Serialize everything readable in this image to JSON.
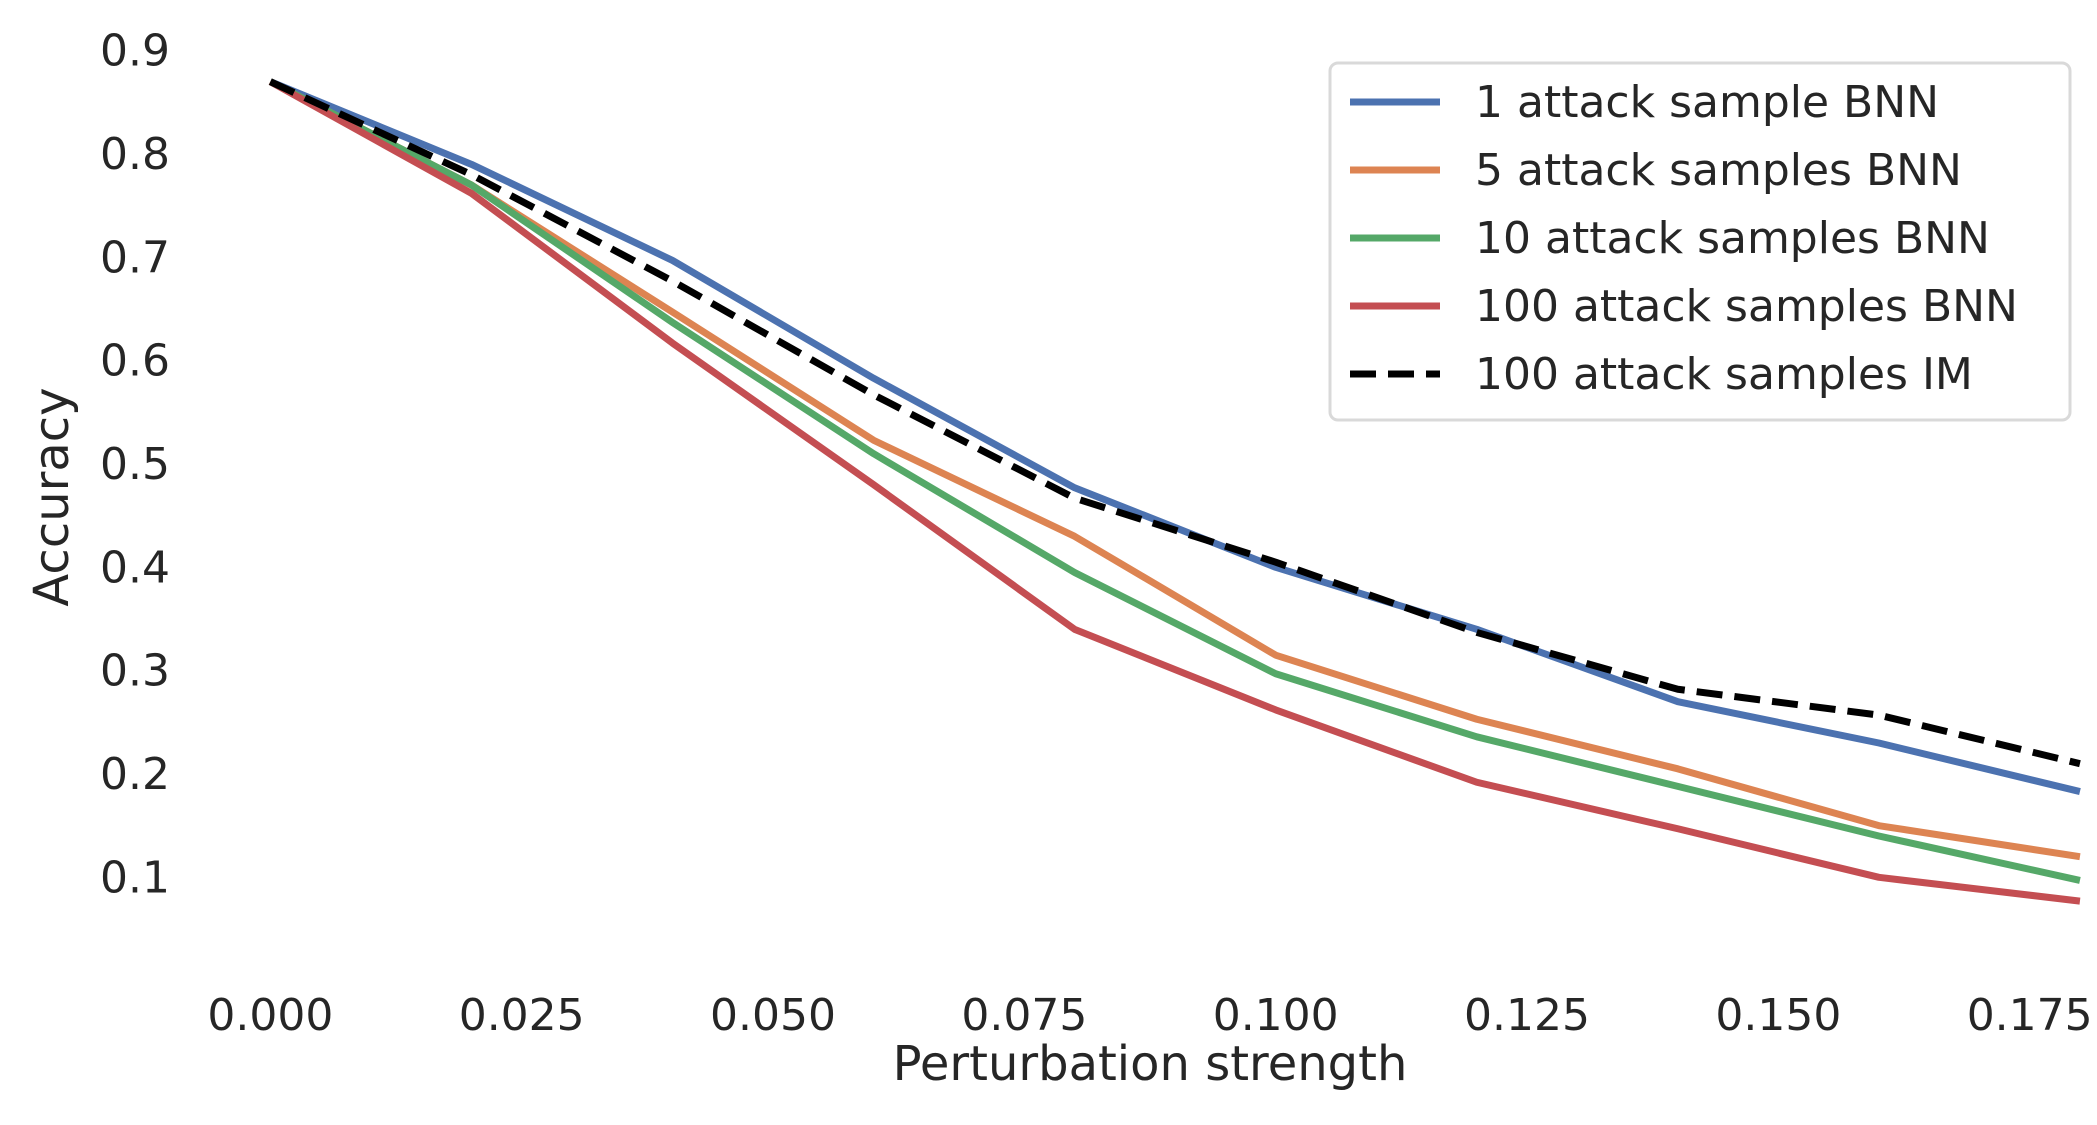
{
  "chart_data": {
    "type": "line",
    "title": "",
    "xlabel": "Perturbation strength",
    "ylabel": "Accuracy",
    "xlim": [
      -0.007,
      0.181
    ],
    "ylim": [
      0.02,
      0.92
    ],
    "xticks": [
      0.0,
      0.025,
      0.05,
      0.075,
      0.1,
      0.125,
      0.15,
      0.175
    ],
    "xtick_labels": [
      "0.000",
      "0.025",
      "0.050",
      "0.075",
      "0.100",
      "0.125",
      "0.150",
      "0.175"
    ],
    "yticks": [
      0.1,
      0.2,
      0.3,
      0.4,
      0.5,
      0.6,
      0.7,
      0.8,
      0.9
    ],
    "ytick_labels": [
      "0.1",
      "0.2",
      "0.3",
      "0.4",
      "0.5",
      "0.6",
      "0.7",
      "0.8",
      "0.9"
    ],
    "grid": false,
    "legend_position": "top-right",
    "x": [
      0.0,
      0.02,
      0.04,
      0.06,
      0.08,
      0.1,
      0.12,
      0.14,
      0.16,
      0.18
    ],
    "series": [
      {
        "name": "1 attack sample BNN",
        "color": "#4c72b0",
        "dash": "solid",
        "values": [
          0.87,
          0.79,
          0.697,
          0.583,
          0.477,
          0.4,
          0.34,
          0.27,
          0.23,
          0.183
        ]
      },
      {
        "name": "5 attack samples BNN",
        "color": "#dd8452",
        "dash": "solid",
        "values": [
          0.87,
          0.77,
          0.647,
          0.523,
          0.43,
          0.315,
          0.253,
          0.205,
          0.15,
          0.12
        ]
      },
      {
        "name": "10 attack samples BNN",
        "color": "#55a868",
        "dash": "solid",
        "values": [
          0.87,
          0.77,
          0.637,
          0.51,
          0.395,
          0.297,
          0.236,
          0.188,
          0.14,
          0.097
        ]
      },
      {
        "name": "100 attack samples BNN",
        "color": "#c44e52",
        "dash": "solid",
        "values": [
          0.87,
          0.762,
          0.617,
          0.48,
          0.34,
          0.262,
          0.192,
          0.147,
          0.1,
          0.077
        ]
      },
      {
        "name": "100 attack samples IM",
        "color": "#000000",
        "dash": "dashed",
        "values": [
          0.87,
          0.78,
          0.677,
          0.567,
          0.467,
          0.405,
          0.337,
          0.282,
          0.257,
          0.21
        ]
      }
    ]
  }
}
